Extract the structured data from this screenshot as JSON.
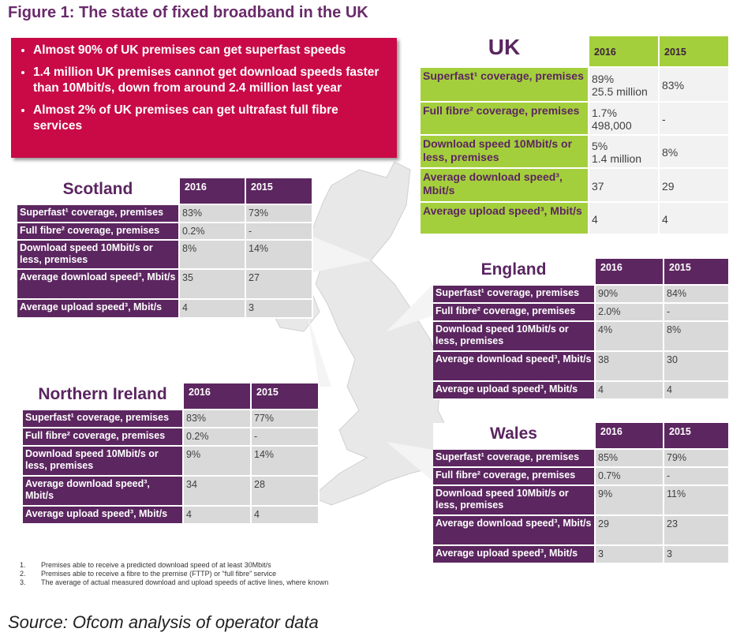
{
  "title": "Figure 1: The state of fixed broadband in the UK",
  "highlights": [
    "Almost 90% of UK premises can get superfast speeds",
    "1.4 million UK premises cannot get download speeds faster than 10Mbit/s, down from around 2.4 million last year",
    "Almost 2% of UK premises can get ultrafast full fibre services"
  ],
  "tables": [
    {
      "name": "UK",
      "columns": [
        "2016",
        "2015"
      ],
      "rows": [
        {
          "label": "Superfast¹ coverage, premises",
          "values": [
            "89%\n25.5 million",
            "83%"
          ]
        },
        {
          "label": "Full fibre² coverage, premises",
          "values": [
            "1.7%\n498,000",
            "-"
          ]
        },
        {
          "label": "Download speed 10Mbit/s or less, premises",
          "values": [
            "5%\n1.4 million",
            "8%"
          ]
        },
        {
          "label": "Average download speed³, Mbit/s",
          "values": [
            "37",
            "29"
          ]
        },
        {
          "label": "Average upload speed³, Mbit/s",
          "values": [
            "4",
            "4"
          ]
        }
      ]
    },
    {
      "name": "Scotland",
      "columns": [
        "2016",
        "2015"
      ],
      "rows": [
        {
          "label": "Superfast¹ coverage, premises",
          "values": [
            "83%",
            "73%"
          ]
        },
        {
          "label": "Full fibre² coverage, premises",
          "values": [
            "0.2%",
            "-"
          ]
        },
        {
          "label": "Download speed 10Mbit/s or less, premises",
          "values": [
            "8%",
            "14%"
          ]
        },
        {
          "label": "Average download speed³, Mbit/s",
          "values": [
            "35",
            "27"
          ]
        },
        {
          "label": "Average upload speed³, Mbit/s",
          "values": [
            "4",
            "3"
          ]
        }
      ]
    },
    {
      "name": "England",
      "columns": [
        "2016",
        "2015"
      ],
      "rows": [
        {
          "label": "Superfast¹ coverage, premises",
          "values": [
            "90%",
            "84%"
          ]
        },
        {
          "label": "Full fibre² coverage, premises",
          "values": [
            "2.0%",
            "-"
          ]
        },
        {
          "label": "Download speed 10Mbit/s or less, premises",
          "values": [
            "4%",
            "8%"
          ]
        },
        {
          "label": "Average download speed³, Mbit/s",
          "values": [
            "38",
            "30"
          ]
        },
        {
          "label": "Average upload speed³, Mbit/s",
          "values": [
            "4",
            "4"
          ]
        }
      ]
    },
    {
      "name": "Northern Ireland",
      "columns": [
        "2016",
        "2015"
      ],
      "rows": [
        {
          "label": "Superfast¹ coverage, premises",
          "values": [
            "83%",
            "77%"
          ]
        },
        {
          "label": "Full fibre² coverage, premises",
          "values": [
            "0.2%",
            "-"
          ]
        },
        {
          "label": "Download speed 10Mbit/s or less, premises",
          "values": [
            "9%",
            "14%"
          ]
        },
        {
          "label": "Average download speed³, Mbit/s",
          "values": [
            "34",
            "28"
          ]
        },
        {
          "label": "Average upload speed³, Mbit/s",
          "values": [
            "4",
            "4"
          ]
        }
      ]
    },
    {
      "name": "Wales",
      "columns": [
        "2016",
        "2015"
      ],
      "rows": [
        {
          "label": "Superfast¹ coverage, premises",
          "values": [
            "85%",
            "79%"
          ]
        },
        {
          "label": "Full fibre² coverage, premises",
          "values": [
            "0.7%",
            "-"
          ]
        },
        {
          "label": "Download speed 10Mbit/s or less, premises",
          "values": [
            "9%",
            "11%"
          ]
        },
        {
          "label": "Average download speed³, Mbit/s",
          "values": [
            "29",
            "23"
          ]
        },
        {
          "label": "Average upload speed³, Mbit/s",
          "values": [
            "3",
            "3"
          ]
        }
      ]
    }
  ],
  "footnotes": [
    {
      "number": "1.",
      "text": "Premises able to receive a predicted download speed of at least 30Mbit/s"
    },
    {
      "number": "2.",
      "text": "Premises able to receive a fibre to the premise (FTTP) or “full fibre” service"
    },
    {
      "number": "3.",
      "text": "The average of actual measured download and upload speeds of active lines, where known"
    }
  ],
  "source": "Source: Ofcom analysis of operator data"
}
